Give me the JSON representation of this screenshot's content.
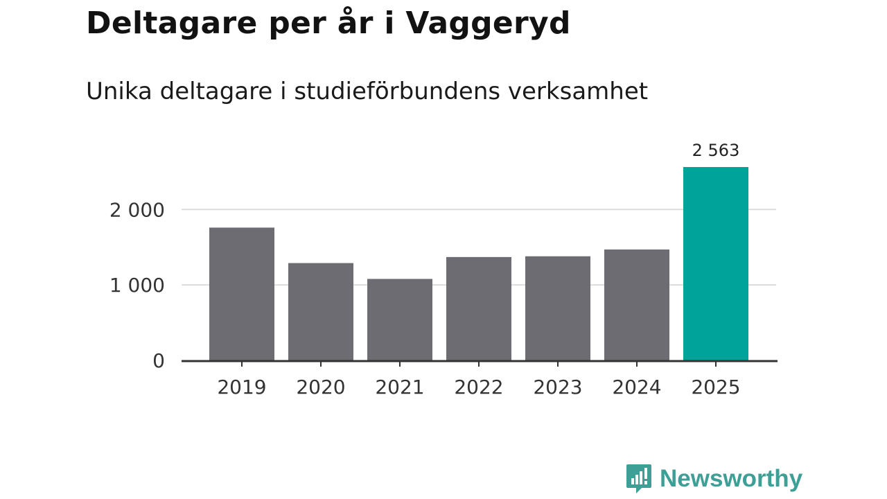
{
  "header": {
    "title": "Deltagare per år i Vaggeryd",
    "subtitle": "Unika deltagare i studieförbundens verksamhet"
  },
  "brand": {
    "name": "Newsworthy",
    "color": "#3d9f96"
  },
  "colors": {
    "bar": "#6d6c73",
    "highlight": "#00a39a",
    "grid": "#dcdcdc",
    "axis": "#333333"
  },
  "chart_data": {
    "type": "bar",
    "title": "Deltagare per år i Vaggeryd",
    "subtitle": "Unika deltagare i studieförbundens verksamhet",
    "categories": [
      "2019",
      "2020",
      "2021",
      "2022",
      "2023",
      "2024",
      "2025"
    ],
    "values": [
      1760,
      1290,
      1080,
      1370,
      1380,
      1470,
      2563
    ],
    "highlight_index": 6,
    "data_labels": {
      "6": "2 563"
    },
    "yticks": [
      0,
      1000,
      2000
    ],
    "ytick_labels": [
      "0",
      "1 000",
      "2 000"
    ],
    "ylim": [
      0,
      2563
    ],
    "xlabel": "",
    "ylabel": "",
    "grid": true
  }
}
